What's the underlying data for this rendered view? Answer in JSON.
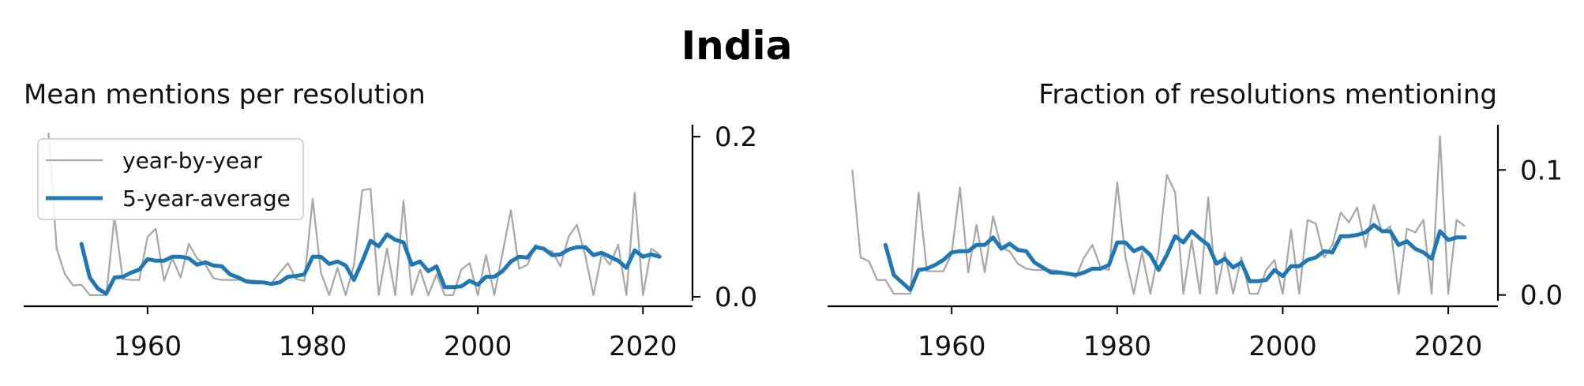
{
  "suptitle": "India",
  "legend": {
    "placement": "upper-left",
    "entries": [
      "year-by-year",
      "5-year-average"
    ]
  },
  "colors": {
    "raw": "#a8a8a8",
    "avg": "#1f77b4"
  },
  "chart_data": [
    {
      "type": "line",
      "title": "Mean mentions per resolution",
      "xlim": [
        1945,
        2026
      ],
      "ylim": [
        -0.004,
        0.21
      ],
      "xticks": [
        1960,
        1980,
        2000,
        2020
      ],
      "xtick_labels": [
        "1960",
        "1980",
        "2000",
        "2020"
      ],
      "yticks": [
        0.0,
        0.2
      ],
      "ytick_labels": [
        "0.0",
        "0.2"
      ],
      "yaxis_position": "right",
      "grid": false,
      "series": [
        {
          "name": "year-by-year",
          "x": [
            1948,
            1949,
            1950,
            1951,
            1952,
            1953,
            1954,
            1955,
            1956,
            1957,
            1958,
            1959,
            1960,
            1961,
            1962,
            1963,
            1964,
            1965,
            1966,
            1967,
            1968,
            1969,
            1970,
            1971,
            1972,
            1973,
            1974,
            1975,
            1976,
            1977,
            1978,
            1979,
            1980,
            1981,
            1982,
            1983,
            1984,
            1985,
            1986,
            1987,
            1988,
            1989,
            1990,
            1991,
            1992,
            1993,
            1994,
            1995,
            1996,
            1997,
            1998,
            1999,
            2000,
            2001,
            2002,
            2003,
            2004,
            2005,
            2006,
            2007,
            2008,
            2009,
            2010,
            2011,
            2012,
            2013,
            2014,
            2015,
            2016,
            2017,
            2018,
            2019,
            2020,
            2021,
            2022
          ],
          "values": [
            0.205,
            0.06,
            0.028,
            0.014,
            0.015,
            0.002,
            0.002,
            0.002,
            0.1,
            0.022,
            0.021,
            0.021,
            0.075,
            0.085,
            0.02,
            0.048,
            0.024,
            0.066,
            0.048,
            0.04,
            0.023,
            0.021,
            0.021,
            0.021,
            0.021,
            0.02,
            0.019,
            0.017,
            0.03,
            0.042,
            0.022,
            0.02,
            0.122,
            0.03,
            0.002,
            0.036,
            0.002,
            0.04,
            0.133,
            0.135,
            0.002,
            0.06,
            0.002,
            0.12,
            0.002,
            0.034,
            0.002,
            0.028,
            0.002,
            0.002,
            0.034,
            0.042,
            0.002,
            0.052,
            0.002,
            0.055,
            0.108,
            0.035,
            0.04,
            0.065,
            0.058,
            0.057,
            0.038,
            0.075,
            0.09,
            0.052,
            0.002,
            0.053,
            0.04,
            0.065,
            0.002,
            0.13,
            0.002,
            0.06,
            0.053
          ]
        },
        {
          "name": "5-year-average",
          "x": [
            1952,
            1953,
            1954,
            1955,
            1956,
            1957,
            1958,
            1959,
            1960,
            1961,
            1962,
            1963,
            1964,
            1965,
            1966,
            1967,
            1968,
            1969,
            1970,
            1971,
            1972,
            1973,
            1974,
            1975,
            1976,
            1977,
            1978,
            1979,
            1980,
            1981,
            1982,
            1983,
            1984,
            1985,
            1986,
            1987,
            1988,
            1989,
            1990,
            1991,
            1992,
            1993,
            1994,
            1995,
            1996,
            1997,
            1998,
            1999,
            2000,
            2001,
            2002,
            2003,
            2004,
            2005,
            2006,
            2007,
            2008,
            2009,
            2010,
            2011,
            2012,
            2013,
            2014,
            2015,
            2016,
            2017,
            2018,
            2019,
            2020,
            2021,
            2022
          ],
          "values": [
            0.066,
            0.024,
            0.01,
            0.004,
            0.024,
            0.025,
            0.03,
            0.034,
            0.047,
            0.045,
            0.045,
            0.05,
            0.05,
            0.048,
            0.04,
            0.043,
            0.039,
            0.038,
            0.028,
            0.024,
            0.019,
            0.018,
            0.018,
            0.016,
            0.018,
            0.025,
            0.026,
            0.028,
            0.05,
            0.05,
            0.041,
            0.044,
            0.039,
            0.021,
            0.044,
            0.07,
            0.063,
            0.078,
            0.071,
            0.068,
            0.04,
            0.044,
            0.032,
            0.038,
            0.012,
            0.012,
            0.013,
            0.02,
            0.015,
            0.025,
            0.025,
            0.032,
            0.044,
            0.05,
            0.049,
            0.062,
            0.06,
            0.052,
            0.053,
            0.059,
            0.062,
            0.062,
            0.052,
            0.055,
            0.05,
            0.045,
            0.036,
            0.058,
            0.05,
            0.053,
            0.05
          ]
        }
      ]
    },
    {
      "type": "line",
      "title": "Fraction of resolutions mentioning",
      "xlim": [
        1945,
        2026
      ],
      "ylim": [
        -0.004,
        0.133
      ],
      "xticks": [
        1960,
        1980,
        2000,
        2020
      ],
      "xtick_labels": [
        "1960",
        "1980",
        "2000",
        "2020"
      ],
      "yticks": [
        0.0,
        0.1
      ],
      "ytick_labels": [
        "0.0",
        "0.1"
      ],
      "yaxis_position": "right",
      "grid": false,
      "series": [
        {
          "name": "year-by-year",
          "x": [
            1948,
            1949,
            1950,
            1951,
            1952,
            1953,
            1954,
            1955,
            1956,
            1957,
            1958,
            1959,
            1960,
            1961,
            1962,
            1963,
            1964,
            1965,
            1966,
            1967,
            1968,
            1969,
            1970,
            1971,
            1972,
            1973,
            1974,
            1975,
            1976,
            1977,
            1978,
            1979,
            1980,
            1981,
            1982,
            1983,
            1984,
            1985,
            1986,
            1987,
            1988,
            1989,
            1990,
            1991,
            1992,
            1993,
            1994,
            1995,
            1996,
            1997,
            1998,
            1999,
            2000,
            2001,
            2002,
            2003,
            2004,
            2005,
            2006,
            2007,
            2008,
            2009,
            2010,
            2011,
            2012,
            2013,
            2014,
            2015,
            2016,
            2017,
            2018,
            2019,
            2020,
            2021,
            2022
          ],
          "values": [
            0.1,
            0.03,
            0.027,
            0.012,
            0.012,
            0.001,
            0.001,
            0.001,
            0.082,
            0.019,
            0.019,
            0.019,
            0.033,
            0.086,
            0.018,
            0.056,
            0.018,
            0.063,
            0.038,
            0.035,
            0.025,
            0.021,
            0.02,
            0.02,
            0.02,
            0.019,
            0.018,
            0.014,
            0.03,
            0.04,
            0.022,
            0.02,
            0.09,
            0.03,
            0.001,
            0.034,
            0.001,
            0.035,
            0.096,
            0.082,
            0.001,
            0.044,
            0.001,
            0.078,
            0.001,
            0.034,
            0.001,
            0.03,
            0.001,
            0.001,
            0.02,
            0.028,
            0.001,
            0.052,
            0.001,
            0.06,
            0.057,
            0.03,
            0.04,
            0.066,
            0.058,
            0.07,
            0.038,
            0.072,
            0.05,
            0.055,
            0.001,
            0.053,
            0.05,
            0.06,
            0.001,
            0.127,
            0.001,
            0.06,
            0.055
          ]
        },
        {
          "name": "5-year-average",
          "x": [
            1952,
            1953,
            1954,
            1955,
            1956,
            1957,
            1958,
            1959,
            1960,
            1961,
            1962,
            1963,
            1964,
            1965,
            1966,
            1967,
            1968,
            1969,
            1970,
            1971,
            1972,
            1973,
            1974,
            1975,
            1976,
            1977,
            1978,
            1979,
            1980,
            1981,
            1982,
            1983,
            1984,
            1985,
            1986,
            1987,
            1988,
            1989,
            1990,
            1991,
            1992,
            1993,
            1994,
            1995,
            1996,
            1997,
            1998,
            1999,
            2000,
            2001,
            2002,
            2003,
            2004,
            2005,
            2006,
            2007,
            2008,
            2009,
            2010,
            2011,
            2012,
            2013,
            2014,
            2015,
            2016,
            2017,
            2018,
            2019,
            2020,
            2021,
            2022
          ],
          "values": [
            0.04,
            0.016,
            0.01,
            0.004,
            0.02,
            0.021,
            0.024,
            0.028,
            0.034,
            0.035,
            0.035,
            0.04,
            0.04,
            0.046,
            0.037,
            0.041,
            0.036,
            0.035,
            0.026,
            0.022,
            0.018,
            0.018,
            0.017,
            0.016,
            0.018,
            0.021,
            0.021,
            0.024,
            0.042,
            0.042,
            0.035,
            0.038,
            0.032,
            0.02,
            0.032,
            0.047,
            0.042,
            0.051,
            0.045,
            0.04,
            0.025,
            0.029,
            0.022,
            0.026,
            0.011,
            0.011,
            0.012,
            0.02,
            0.015,
            0.023,
            0.023,
            0.028,
            0.03,
            0.035,
            0.034,
            0.047,
            0.047,
            0.048,
            0.05,
            0.056,
            0.051,
            0.051,
            0.04,
            0.043,
            0.037,
            0.034,
            0.029,
            0.051,
            0.044,
            0.046,
            0.046
          ]
        }
      ]
    }
  ]
}
